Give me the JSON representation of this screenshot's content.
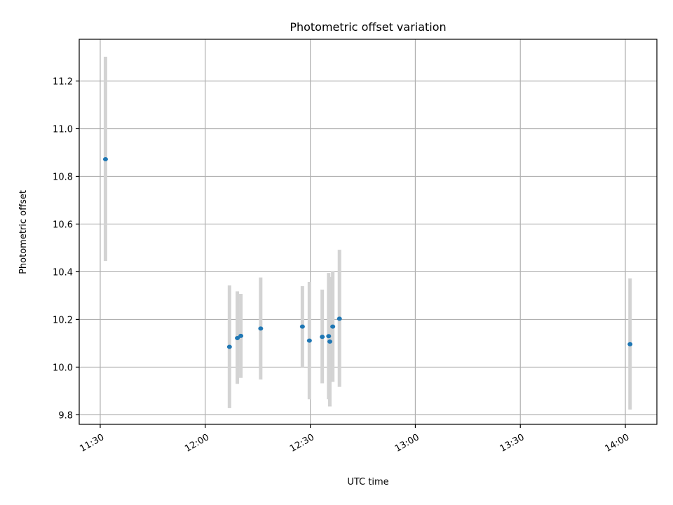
{
  "chart_data": {
    "type": "scatter",
    "title": "Photometric offset variation",
    "xlabel": "UTC time",
    "ylabel": "Photometric offset",
    "x_unit": "UTC time (HH:MM)",
    "xlim": [
      "11:24",
      "14:09"
    ],
    "ylim": [
      9.76,
      11.375
    ],
    "grid": true,
    "x_ticks": [
      "11:30",
      "12:00",
      "12:30",
      "13:00",
      "13:30",
      "14:00"
    ],
    "y_ticks": [
      9.8,
      10.0,
      10.2,
      10.4,
      10.6,
      10.8,
      11.0,
      11.2
    ],
    "y_tick_labels": [
      "9.8",
      "10.0",
      "10.2",
      "10.4",
      "10.6",
      "10.8",
      "11.0",
      "11.2"
    ],
    "errorbar_color": "#d3d3d3",
    "marker_color": "#1f77b4",
    "points": [
      {
        "time": "11:31:30",
        "y": 10.872,
        "err_low": 10.445,
        "err_high": 11.302
      },
      {
        "time": "12:06:55",
        "y": 10.085,
        "err_low": 9.828,
        "err_high": 10.343
      },
      {
        "time": "12:09:10",
        "y": 10.122,
        "err_low": 9.93,
        "err_high": 10.318
      },
      {
        "time": "12:10:10",
        "y": 10.131,
        "err_low": 9.955,
        "err_high": 10.307
      },
      {
        "time": "12:15:50",
        "y": 10.162,
        "err_low": 9.948,
        "err_high": 10.376
      },
      {
        "time": "12:27:45",
        "y": 10.17,
        "err_low": 10.0,
        "err_high": 10.34
      },
      {
        "time": "12:29:45",
        "y": 10.111,
        "err_low": 9.865,
        "err_high": 10.357
      },
      {
        "time": "12:33:25",
        "y": 10.127,
        "err_low": 9.932,
        "err_high": 10.325
      },
      {
        "time": "12:35:15",
        "y": 10.13,
        "err_low": 9.865,
        "err_high": 10.395
      },
      {
        "time": "12:35:35",
        "y": 10.107,
        "err_low": 9.835,
        "err_high": 10.378
      },
      {
        "time": "12:36:25",
        "y": 10.17,
        "err_low": 9.938,
        "err_high": 10.403
      },
      {
        "time": "12:38:20",
        "y": 10.203,
        "err_low": 9.917,
        "err_high": 10.492
      },
      {
        "time": "14:01:20",
        "y": 10.096,
        "err_low": 9.822,
        "err_high": 10.372
      }
    ]
  }
}
